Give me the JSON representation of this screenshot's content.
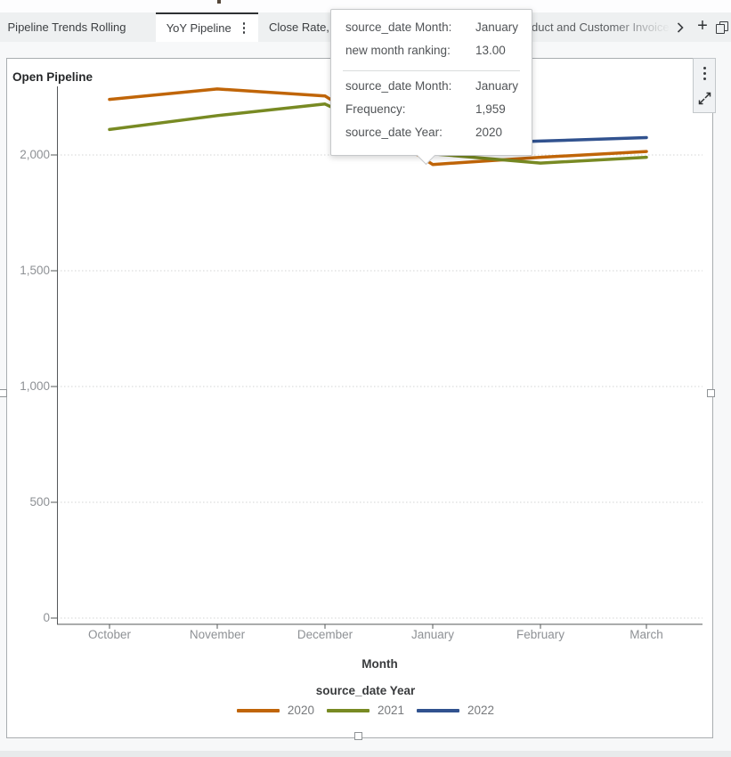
{
  "tab_bar": {
    "tabs": [
      {
        "label": "Pipeline Trends Rolling",
        "active": false
      },
      {
        "label": "YoY Pipeline",
        "active": true
      },
      {
        "label": "Close Rate, W",
        "active": false,
        "truncated": true
      },
      {
        "label": "duct and Customer Invoices",
        "active": false,
        "truncated": true
      }
    ],
    "add_label": "+"
  },
  "panel": {
    "title": "Open Pipeline"
  },
  "tooltip": {
    "rows_top": [
      {
        "label": "source_date Month:",
        "value": "January"
      },
      {
        "label": "new month ranking:",
        "value": "13.00"
      }
    ],
    "rows_bottom": [
      {
        "label": "source_date Month:",
        "value": "January"
      },
      {
        "label": "Frequency:",
        "value": "1,959"
      },
      {
        "label": "source_date Year:",
        "value": "2020"
      }
    ]
  },
  "chart_data": {
    "type": "line",
    "title": "Open Pipeline",
    "categories": [
      "October",
      "November",
      "December",
      "January",
      "February",
      "March"
    ],
    "xlabel": "Month",
    "legend_title": "source_date Year",
    "legend_position": "bottom center",
    "grid": "horizontal dotted",
    "ylim": [
      0,
      2320
    ],
    "yticks": [
      {
        "value": 0,
        "label": "0"
      },
      {
        "value": 500,
        "label": "500"
      },
      {
        "value": 1000,
        "label": "1,000"
      },
      {
        "value": 1500,
        "label": "1,500"
      },
      {
        "value": 2000,
        "label": "2,000"
      }
    ],
    "series": [
      {
        "name": "2020",
        "color": "#C06508",
        "values": [
          2240,
          2285,
          2255,
          1959,
          1990,
          2015
        ]
      },
      {
        "name": "2021",
        "color": "#788A23",
        "values": [
          2110,
          2170,
          2220,
          2005,
          1965,
          1990
        ]
      },
      {
        "name": "2022",
        "color": "#31528F",
        "values": [
          null,
          null,
          null,
          2045,
          2060,
          2075
        ]
      }
    ],
    "highlight": {
      "series": "2020",
      "category": "January",
      "value": "1,959"
    }
  },
  "colors": {
    "accent_orange": "#C06508",
    "accent_olive": "#788A23",
    "accent_navy": "#31528F",
    "tab_bar_bg": "#eef0f1",
    "panel_border": "#a9adb0",
    "muted_text": "#8e9195"
  }
}
